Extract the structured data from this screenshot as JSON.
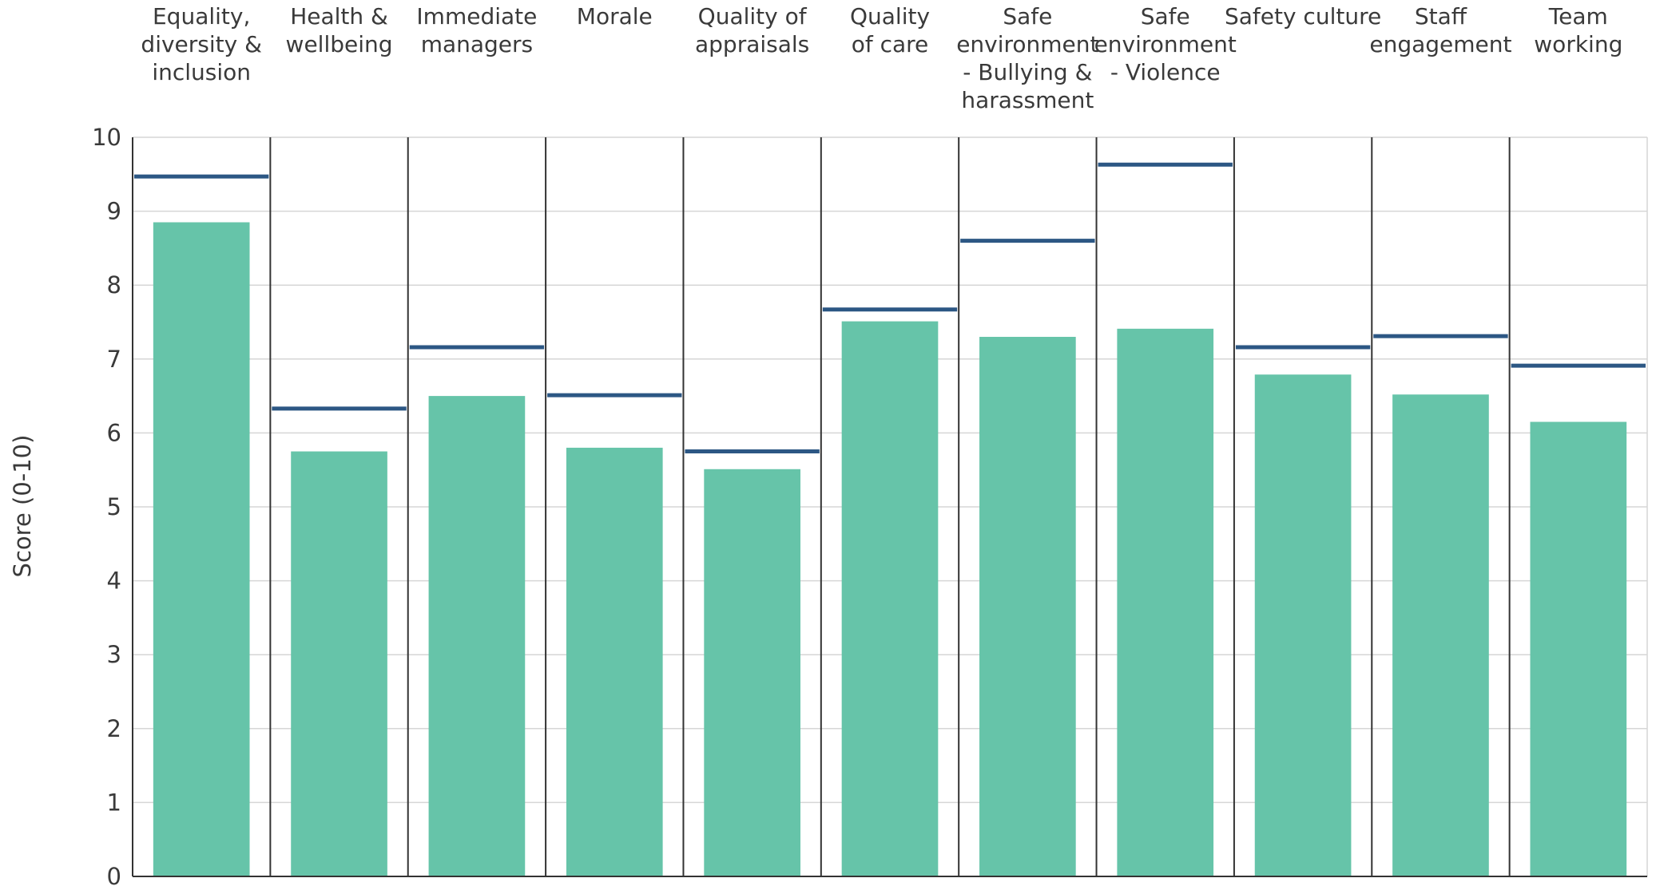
{
  "chart_data": {
    "type": "bar",
    "ylabel": "Score (0-10)",
    "ylim": [
      0,
      10
    ],
    "yticks": [
      0,
      1,
      2,
      3,
      4,
      5,
      6,
      7,
      8,
      9,
      10
    ],
    "categories": [
      [
        "Equality,",
        "diversity &",
        "inclusion"
      ],
      [
        "Health &",
        "wellbeing"
      ],
      [
        "Immediate",
        "managers"
      ],
      [
        "Morale"
      ],
      [
        "Quality of",
        "appraisals"
      ],
      [
        "Quality",
        "of care"
      ],
      [
        "Safe",
        "environment",
        "- Bullying &",
        "harassment"
      ],
      [
        "Safe",
        "environment",
        "- Violence"
      ],
      [
        "Safety culture"
      ],
      [
        "Staff",
        "engagement"
      ],
      [
        "Team",
        "working"
      ]
    ],
    "values": [
      8.85,
      5.75,
      6.5,
      5.8,
      5.51,
      7.51,
      7.3,
      7.41,
      6.79,
      6.52,
      6.15
    ],
    "benchmarks": [
      9.47,
      6.33,
      7.16,
      6.51,
      5.75,
      7.67,
      8.6,
      9.63,
      7.16,
      7.31,
      6.91
    ],
    "grid": true,
    "colors": {
      "bar": "#66c4a9",
      "benchmark": "#2c5784",
      "grid": "#d6d6d6",
      "divider": "#333333"
    }
  }
}
